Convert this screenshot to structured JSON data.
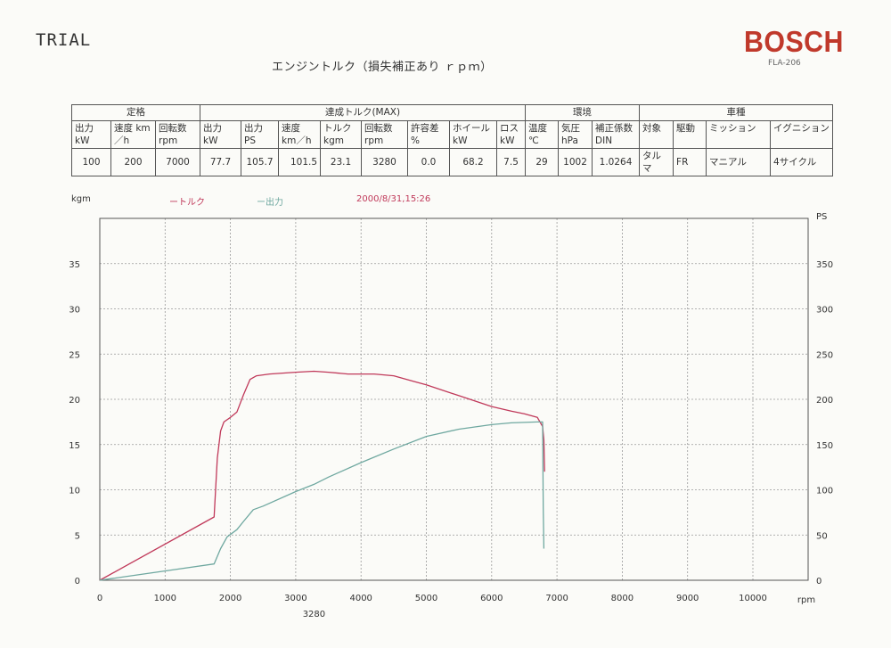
{
  "header": {
    "trial": "TRIAL",
    "title": "エンジントルク（損失補正あり ｒｐｍ）",
    "brand": "BOSCH",
    "model": "FLA-206"
  },
  "spec_table": {
    "groups": [
      "定格",
      "達成トルク(MAX)",
      "環境",
      "車種"
    ],
    "headers": {
      "rated_power": "出力 kW",
      "rated_speed": "速度 km／h",
      "rated_rpm": "回転数 rpm",
      "max_power_kw": "出力 kW",
      "max_power_ps": "出力 PS",
      "max_speed": "速度 km／h",
      "max_torque": "トルク kgm",
      "max_rpm": "回転数 rpm",
      "tolerance": "許容差 %",
      "wheel": "ホイール kW",
      "loss": "ロス kW",
      "temp": "温度 ℃",
      "pressure": "気圧 hPa",
      "correction": "補正係数 DIN",
      "target": "対象",
      "drive": "駆動",
      "mission": "ミッション",
      "ignition": "イグニション"
    },
    "values": {
      "rated_power": "100",
      "rated_speed": "200",
      "rated_rpm": "7000",
      "max_power_kw": "77.7",
      "max_power_ps": "105.7",
      "max_speed": "101.5",
      "max_torque": "23.1",
      "max_rpm": "3280",
      "tolerance": "0.0",
      "wheel": "68.2",
      "loss": "7.5",
      "temp": "29",
      "pressure": "1002",
      "correction": "1.0264",
      "target": "タルマ",
      "drive": "FR",
      "mission": "マニアル",
      "ignition": "4サイクル"
    }
  },
  "chart_data": {
    "type": "line",
    "left_unit": "kgm",
    "right_unit": "PS",
    "x_unit": "rpm",
    "date": "2000/8/31,15:26",
    "marker_label": "3280",
    "legend": [
      "ートルク",
      "ー出力"
    ],
    "xlim": [
      0,
      11000
    ],
    "ylim_left": [
      0,
      40
    ],
    "ylim_right": [
      0,
      400
    ],
    "x_ticks": [
      0,
      1000,
      2000,
      3000,
      4000,
      5000,
      6000,
      7000,
      8000,
      9000,
      10000
    ],
    "y_ticks_left": [
      0,
      5,
      10,
      15,
      20,
      25,
      30,
      35
    ],
    "y_ticks_right": [
      0,
      50,
      100,
      150,
      200,
      250,
      300,
      350
    ],
    "series": [
      {
        "name": "トルク",
        "axis": "left",
        "color": "#c0395a",
        "x": [
          0,
          1750,
          1800,
          1850,
          1900,
          2000,
          2100,
          2200,
          2300,
          2400,
          2600,
          2800,
          3000,
          3280,
          3500,
          3800,
          4000,
          4200,
          4500,
          4800,
          5000,
          5500,
          6000,
          6300,
          6500,
          6700,
          6780,
          6800,
          6810
        ],
        "values": [
          0,
          7.0,
          13.5,
          16.5,
          17.5,
          18.0,
          18.6,
          20.5,
          22.2,
          22.6,
          22.8,
          22.9,
          23.0,
          23.1,
          23.0,
          22.8,
          22.8,
          22.8,
          22.6,
          22.0,
          21.6,
          20.4,
          19.2,
          18.7,
          18.4,
          18.0,
          17.0,
          15.5,
          12.0
        ]
      },
      {
        "name": "出力",
        "axis": "right",
        "color": "#6fa8a0",
        "x": [
          0,
          1750,
          1850,
          1950,
          2100,
          2200,
          2350,
          2500,
          3000,
          3280,
          3500,
          4000,
          4500,
          5000,
          5500,
          6000,
          6300,
          6700,
          6780,
          6790,
          6800
        ],
        "values": [
          0,
          18,
          35,
          48,
          56,
          65,
          78,
          82,
          98,
          106,
          114,
          130,
          145,
          159,
          167,
          172,
          174,
          175,
          175,
          80,
          35
        ]
      }
    ]
  }
}
